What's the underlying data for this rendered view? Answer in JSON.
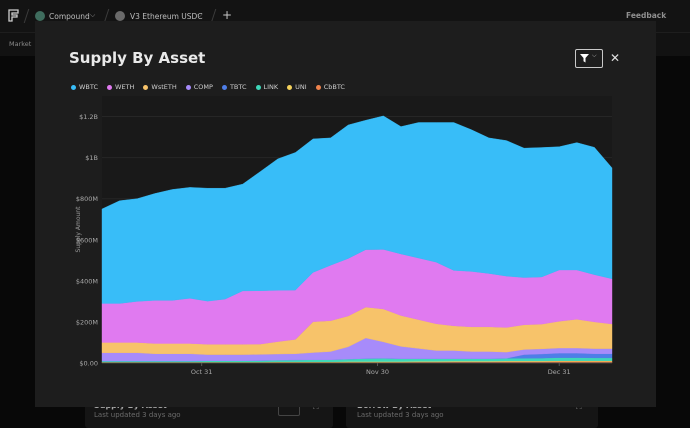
{
  "topbar": {
    "protocol": "Compound",
    "market": "V3 Ethereum USDC",
    "feedback": "Feedback",
    "sub_tab": "Market"
  },
  "background": {
    "card1_title": "Supply By Asset",
    "card1_sub": "Last updated 3 days ago",
    "card2_title": "Borrow By Asset",
    "card2_sub": "Last updated 3 days ago"
  },
  "modal": {
    "title": "Supply By Asset"
  },
  "chart_data": {
    "type": "area",
    "stacked": true,
    "title": "Supply By Asset",
    "ylabel": "Supply Amount",
    "xlabel": "",
    "ylim": [
      0,
      1.3
    ],
    "y_unit": "billions USD",
    "y_ticks": [
      "$0.00",
      "$200M",
      "$400M",
      "$600M",
      "$800M",
      "$1B",
      "$1.2B"
    ],
    "y_tick_values": [
      0,
      0.2,
      0.4,
      0.6,
      0.8,
      1.0,
      1.2
    ],
    "x_ticks": [
      "Oct 31",
      "Nov 30",
      "Dec 31"
    ],
    "x_tick_days": [
      17,
      47,
      78
    ],
    "x_days": [
      0,
      3,
      6,
      9,
      12,
      15,
      18,
      21,
      24,
      27,
      30,
      33,
      36,
      39,
      42,
      45,
      48,
      51,
      54,
      57,
      60,
      63,
      66,
      69,
      72,
      75,
      78,
      81,
      84,
      87
    ],
    "legend_position": "top-left",
    "series": [
      {
        "name": "cbBTC",
        "color": "#f0834c",
        "values": [
          0.002,
          0.002,
          0.002,
          0.002,
          0.002,
          0.002,
          0.002,
          0.002,
          0.002,
          0.002,
          0.003,
          0.003,
          0.003,
          0.003,
          0.004,
          0.004,
          0.004,
          0.004,
          0.005,
          0.005,
          0.006,
          0.006,
          0.006,
          0.007,
          0.007,
          0.007,
          0.008,
          0.008,
          0.008,
          0.008
        ]
      },
      {
        "name": "UNI",
        "color": "#f5d25c",
        "values": [
          0.003,
          0.003,
          0.003,
          0.003,
          0.003,
          0.003,
          0.003,
          0.003,
          0.003,
          0.003,
          0.003,
          0.003,
          0.003,
          0.003,
          0.003,
          0.003,
          0.003,
          0.003,
          0.003,
          0.003,
          0.003,
          0.003,
          0.003,
          0.003,
          0.003,
          0.003,
          0.003,
          0.003,
          0.003,
          0.003
        ]
      },
      {
        "name": "LINK",
        "color": "#3ed7b9",
        "values": [
          0.005,
          0.005,
          0.005,
          0.005,
          0.005,
          0.005,
          0.006,
          0.006,
          0.006,
          0.007,
          0.008,
          0.009,
          0.01,
          0.01,
          0.012,
          0.015,
          0.016,
          0.014,
          0.013,
          0.013,
          0.012,
          0.012,
          0.012,
          0.013,
          0.013,
          0.014,
          0.015,
          0.015,
          0.014,
          0.014
        ]
      },
      {
        "name": "TBTC",
        "color": "#4e7ee8",
        "values": [
          0.0,
          0.0,
          0.0,
          0.0,
          0.0,
          0.0,
          0.0,
          0.0,
          0.0,
          0.0,
          0.0,
          0.0,
          0.0,
          0.0,
          0.0,
          0.0,
          0.0,
          0.0,
          0.0,
          0.0,
          0.0,
          0.0,
          0.0,
          0.0,
          0.018,
          0.02,
          0.022,
          0.022,
          0.02,
          0.02
        ]
      },
      {
        "name": "COMP",
        "color": "#a78bfa",
        "values": [
          0.04,
          0.04,
          0.04,
          0.035,
          0.035,
          0.035,
          0.03,
          0.03,
          0.03,
          0.03,
          0.03,
          0.03,
          0.035,
          0.04,
          0.06,
          0.1,
          0.08,
          0.06,
          0.05,
          0.04,
          0.04,
          0.035,
          0.035,
          0.03,
          0.025,
          0.025,
          0.025,
          0.025,
          0.025,
          0.025
        ]
      },
      {
        "name": "WstETH",
        "color": "#f7c36a",
        "values": [
          0.05,
          0.05,
          0.05,
          0.05,
          0.05,
          0.05,
          0.05,
          0.05,
          0.05,
          0.05,
          0.06,
          0.07,
          0.15,
          0.15,
          0.15,
          0.15,
          0.16,
          0.15,
          0.14,
          0.13,
          0.12,
          0.12,
          0.12,
          0.12,
          0.12,
          0.12,
          0.13,
          0.14,
          0.13,
          0.12
        ]
      },
      {
        "name": "WETH",
        "color": "#e07af0",
        "values": [
          0.19,
          0.19,
          0.2,
          0.21,
          0.21,
          0.22,
          0.21,
          0.22,
          0.26,
          0.26,
          0.25,
          0.24,
          0.24,
          0.27,
          0.28,
          0.28,
          0.29,
          0.3,
          0.3,
          0.3,
          0.27,
          0.27,
          0.26,
          0.25,
          0.23,
          0.23,
          0.25,
          0.24,
          0.23,
          0.22
        ]
      },
      {
        "name": "WBTC",
        "color": "#38bdf8",
        "values": [
          0.46,
          0.5,
          0.5,
          0.52,
          0.54,
          0.54,
          0.55,
          0.54,
          0.52,
          0.58,
          0.64,
          0.67,
          0.65,
          0.62,
          0.65,
          0.63,
          0.65,
          0.62,
          0.66,
          0.68,
          0.72,
          0.69,
          0.66,
          0.66,
          0.63,
          0.63,
          0.6,
          0.62,
          0.62,
          0.54
        ]
      }
    ],
    "legend_order": [
      "WBTC",
      "WETH",
      "WstETH",
      "COMP",
      "TBTC",
      "LINK",
      "UNI",
      "CbBTC"
    ]
  }
}
